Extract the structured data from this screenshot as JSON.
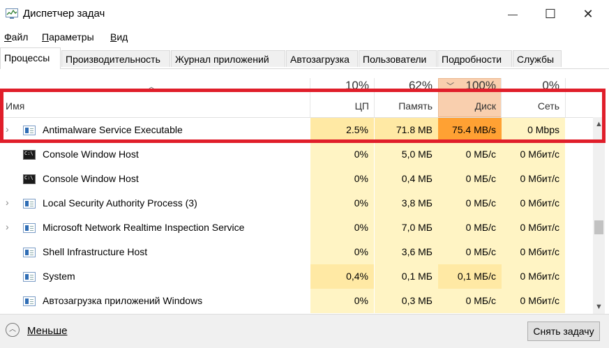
{
  "window": {
    "title": "Диспетчер задач",
    "controls": {
      "minimize": "—",
      "maximize": "☐",
      "close": "✕"
    }
  },
  "menu": [
    {
      "ul": "Ф",
      "rest": "айл"
    },
    {
      "ul": "П",
      "rest": "араметры"
    },
    {
      "ul": "В",
      "rest": "ид"
    }
  ],
  "tabs": [
    "Процессы",
    "Производительность",
    "Журнал приложений",
    "Автозагрузка",
    "Пользователи",
    "Подробности",
    "Службы"
  ],
  "active_tab": "Процессы",
  "header": {
    "name": "Имя",
    "cpu_pct": "10%",
    "cpu_label": "ЦП",
    "mem_pct": "62%",
    "mem_label": "Память",
    "disk_pct": "100%",
    "disk_label": "Диск",
    "net_pct": "0%",
    "net_label": "Сеть"
  },
  "rows": [
    {
      "name": "Antimalware Service Executable",
      "icon": "service-icon",
      "expandable": true,
      "cpu": "2.5%",
      "mem": "71.8 MB",
      "disk": "75.4 MB/s",
      "net": "0 Mbps"
    },
    {
      "name": "Console Window Host",
      "icon": "console-icon",
      "expandable": false,
      "cpu": "0%",
      "mem": "5,0 МБ",
      "disk": "0 МБ/с",
      "net": "0 Мбит/с"
    },
    {
      "name": "Console Window Host",
      "icon": "console-icon",
      "expandable": false,
      "cpu": "0%",
      "mem": "0,4 МБ",
      "disk": "0 МБ/с",
      "net": "0 Мбит/с"
    },
    {
      "name": "Local Security Authority Process (3)",
      "icon": "service-icon",
      "expandable": true,
      "cpu": "0%",
      "mem": "3,8 МБ",
      "disk": "0 МБ/с",
      "net": "0 Мбит/с"
    },
    {
      "name": "Microsoft Network Realtime Inspection Service",
      "icon": "service-icon",
      "expandable": true,
      "cpu": "0%",
      "mem": "7,0 МБ",
      "disk": "0 МБ/с",
      "net": "0 Мбит/с"
    },
    {
      "name": "Shell Infrastructure Host",
      "icon": "service-icon",
      "expandable": false,
      "cpu": "0%",
      "mem": "3,6 МБ",
      "disk": "0 МБ/с",
      "net": "0 Мбит/с"
    },
    {
      "name": "System",
      "icon": "service-icon",
      "expandable": false,
      "cpu": "0,4%",
      "mem": "0,1 МБ",
      "disk": "0,1 МБ/с",
      "net": "0 Мбит/с"
    },
    {
      "name": "Автозагрузка приложений Windows",
      "icon": "service-icon",
      "expandable": false,
      "cpu": "0%",
      "mem": "0,3 МБ",
      "disk": "0 МБ/с",
      "net": "0 Мбит/с"
    }
  ],
  "footer": {
    "less_label": "Меньше",
    "end_task_label": "Снять задачу"
  },
  "colors": {
    "highlight": "#e01e2a",
    "disk_hot": "#ffa133",
    "cell_light": "#fff4c4",
    "cell_medium": "#ffe9a4",
    "disk_header": "#f9cfae"
  }
}
